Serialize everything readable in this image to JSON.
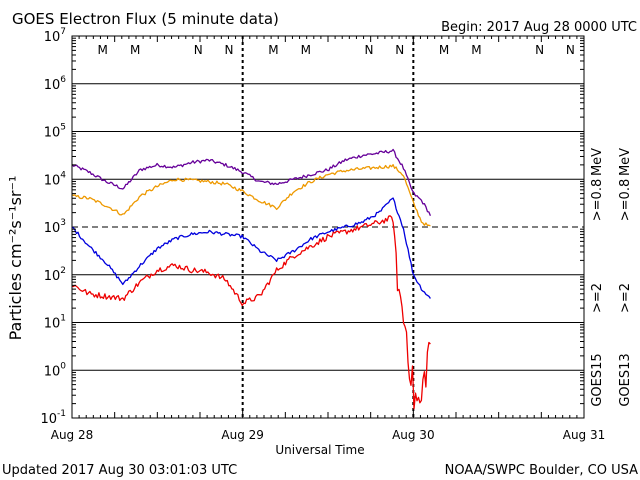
{
  "chart_data": {
    "type": "line",
    "title": "GOES Electron Flux (5 minute data)",
    "begin_label": "Begin: 2017 Aug 28 0000 UTC",
    "xlabel": "Universal Time",
    "ylabel": "Particles cm⁻²s⁻¹sr⁻¹",
    "x_unit": "days since 2017 Aug 28 0000 UTC",
    "xlim": [
      0,
      3
    ],
    "ylim_log10": [
      -1,
      7
    ],
    "x_ticks": [
      {
        "x": 0,
        "label": "Aug 28"
      },
      {
        "x": 1,
        "label": "Aug 29"
      },
      {
        "x": 2,
        "label": "Aug 30"
      },
      {
        "x": 3,
        "label": "Aug 31"
      }
    ],
    "y_ticks": [
      {
        "exp": 7,
        "label": "10",
        "sup": "7"
      },
      {
        "exp": 6,
        "label": "10",
        "sup": "6"
      },
      {
        "exp": 5,
        "label": "10",
        "sup": "5"
      },
      {
        "exp": 4,
        "label": "10",
        "sup": "4"
      },
      {
        "exp": 3,
        "label": "10",
        "sup": "3"
      },
      {
        "exp": 2,
        "label": "10",
        "sup": "2"
      },
      {
        "exp": 1,
        "label": "10",
        "sup": "1"
      },
      {
        "exp": 0,
        "label": "10",
        "sup": "0"
      },
      {
        "exp": -1,
        "label": "10",
        "sup": "-1"
      }
    ],
    "threshold_log10": 3,
    "markers": [
      {
        "x": 0.18,
        "label": "M",
        "color": "#dd0000"
      },
      {
        "x": 0.37,
        "label": "M",
        "color": "#0000cc"
      },
      {
        "x": 0.74,
        "label": "N",
        "color": "#dd0000"
      },
      {
        "x": 0.92,
        "label": "N",
        "color": "#0000cc"
      },
      {
        "x": 1.18,
        "label": "M",
        "color": "#dd0000"
      },
      {
        "x": 1.37,
        "label": "M",
        "color": "#0000cc"
      },
      {
        "x": 1.74,
        "label": "N",
        "color": "#dd0000"
      },
      {
        "x": 1.92,
        "label": "N",
        "color": "#0000cc"
      },
      {
        "x": 2.18,
        "label": "M",
        "color": "#dd0000"
      },
      {
        "x": 2.37,
        "label": "M",
        "color": "#0000cc"
      },
      {
        "x": 2.74,
        "label": "N",
        "color": "#dd0000"
      },
      {
        "x": 2.92,
        "label": "N",
        "color": "#0000cc"
      }
    ],
    "series": [
      {
        "name": "GOES15 >=0.8 MeV",
        "color": "#660099",
        "x": [
          0.0,
          0.1,
          0.2,
          0.3,
          0.4,
          0.5,
          0.6,
          0.7,
          0.8,
          0.9,
          1.0,
          1.1,
          1.2,
          1.3,
          1.4,
          1.5,
          1.6,
          1.7,
          1.8,
          1.88,
          1.94,
          2.0,
          2.05,
          2.1
        ],
        "log10": [
          4.3,
          4.15,
          3.95,
          3.8,
          4.2,
          4.3,
          4.25,
          4.35,
          4.4,
          4.3,
          4.15,
          3.95,
          3.9,
          4.0,
          4.1,
          4.2,
          4.4,
          4.5,
          4.55,
          4.6,
          4.25,
          3.7,
          3.55,
          3.25
        ]
      },
      {
        "name": "GOES13 >=0.8 MeV",
        "color": "#ee9900",
        "x": [
          0.0,
          0.1,
          0.2,
          0.3,
          0.4,
          0.5,
          0.6,
          0.7,
          0.8,
          0.9,
          1.0,
          1.1,
          1.2,
          1.3,
          1.4,
          1.5,
          1.6,
          1.7,
          1.8,
          1.88,
          1.94,
          2.0,
          2.05,
          2.1
        ],
        "log10": [
          3.65,
          3.6,
          3.45,
          3.25,
          3.65,
          3.85,
          4.0,
          3.98,
          3.95,
          3.9,
          3.75,
          3.55,
          3.4,
          3.75,
          3.95,
          4.1,
          4.18,
          4.22,
          4.25,
          4.28,
          4.1,
          3.5,
          3.1,
          3.0
        ]
      },
      {
        "name": "GOES15 >=2 MeV",
        "color": "#0000dd",
        "x": [
          0.0,
          0.1,
          0.2,
          0.3,
          0.4,
          0.5,
          0.6,
          0.7,
          0.8,
          0.9,
          1.0,
          1.1,
          1.2,
          1.3,
          1.4,
          1.5,
          1.6,
          1.7,
          1.8,
          1.88,
          1.94,
          2.0,
          2.05,
          2.1
        ],
        "log10": [
          3.0,
          2.6,
          2.25,
          1.8,
          2.2,
          2.55,
          2.75,
          2.85,
          2.9,
          2.85,
          2.8,
          2.5,
          2.3,
          2.5,
          2.75,
          2.9,
          3.0,
          3.1,
          3.3,
          3.6,
          3.0,
          2.0,
          1.7,
          1.5
        ]
      },
      {
        "name": "GOES13 >=2 MeV",
        "color": "#ee0000",
        "x": [
          0.0,
          0.1,
          0.2,
          0.3,
          0.4,
          0.5,
          0.6,
          0.7,
          0.8,
          0.9,
          1.0,
          1.1,
          1.2,
          1.3,
          1.4,
          1.5,
          1.6,
          1.7,
          1.8,
          1.88,
          1.92,
          1.96,
          2.0,
          2.04,
          2.08,
          2.1
        ],
        "log10": [
          1.8,
          1.6,
          1.55,
          1.5,
          1.85,
          2.1,
          2.2,
          2.1,
          2.05,
          1.9,
          1.4,
          1.55,
          2.1,
          2.4,
          2.6,
          2.8,
          2.9,
          3.0,
          3.1,
          3.2,
          1.5,
          0.8,
          -0.5,
          -0.8,
          0.2,
          0.6
        ]
      }
    ],
    "right_labels": {
      "goes15": "GOES15",
      "goes13": "GOES13",
      "mev2": ">=2",
      "mev08": ">=0.8",
      "unit": "MeV"
    },
    "footer_left": "Updated 2017 Aug 30 03:01:03 UTC",
    "footer_right": "NOAA/SWPC Boulder, CO USA"
  }
}
